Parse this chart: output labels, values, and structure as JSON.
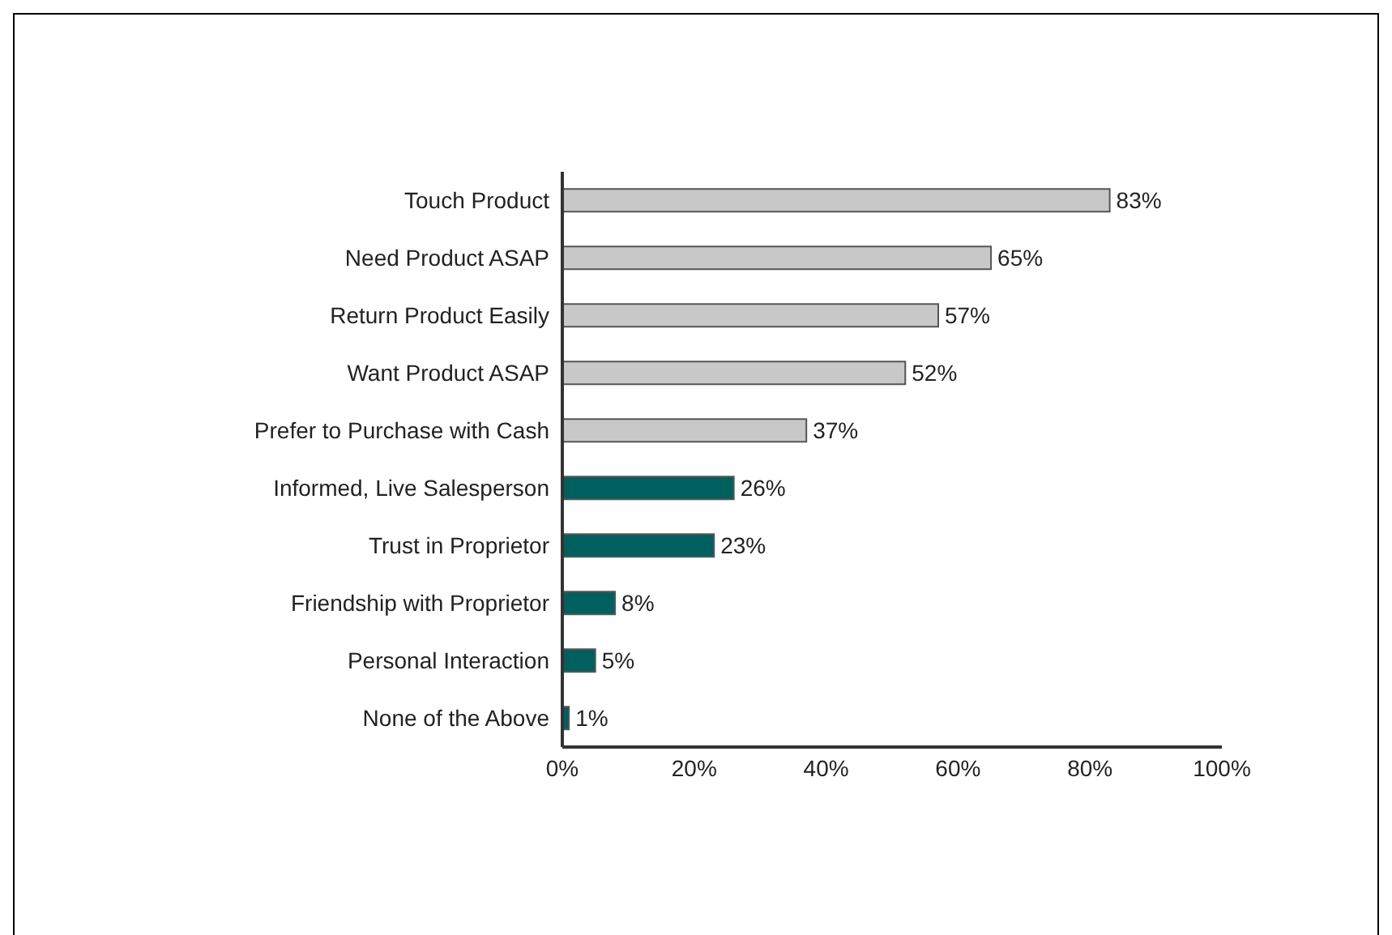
{
  "chart_data": {
    "type": "bar",
    "orientation": "horizontal",
    "categories": [
      "Touch Product",
      "Need Product ASAP",
      "Return Product Easily",
      "Want Product ASAP",
      "Prefer to Purchase with Cash",
      "Informed, Live Salesperson",
      "Trust in Proprietor",
      "Friendship with Proprietor",
      "Personal Interaction",
      "None of the Above"
    ],
    "values": [
      83,
      65,
      57,
      52,
      37,
      26,
      23,
      8,
      5,
      1
    ],
    "colors": [
      "#c8c8c8",
      "#c8c8c8",
      "#c8c8c8",
      "#c8c8c8",
      "#c8c8c8",
      "#005f5f",
      "#005f5f",
      "#005f5f",
      "#005f5f",
      "#005f5f"
    ],
    "value_labels": [
      "83%",
      "65%",
      "57%",
      "52%",
      "37%",
      "26%",
      "23%",
      "8%",
      "5%",
      "1%"
    ],
    "xlim": [
      0,
      100
    ],
    "xticks": [
      {
        "value": 0,
        "label": "0%"
      },
      {
        "value": 20,
        "label": "20%"
      },
      {
        "value": 40,
        "label": "40%"
      },
      {
        "value": 60,
        "label": "60%"
      },
      {
        "value": 80,
        "label": "80%"
      },
      {
        "value": 100,
        "label": "100%"
      }
    ],
    "grid": false,
    "legend": false
  }
}
